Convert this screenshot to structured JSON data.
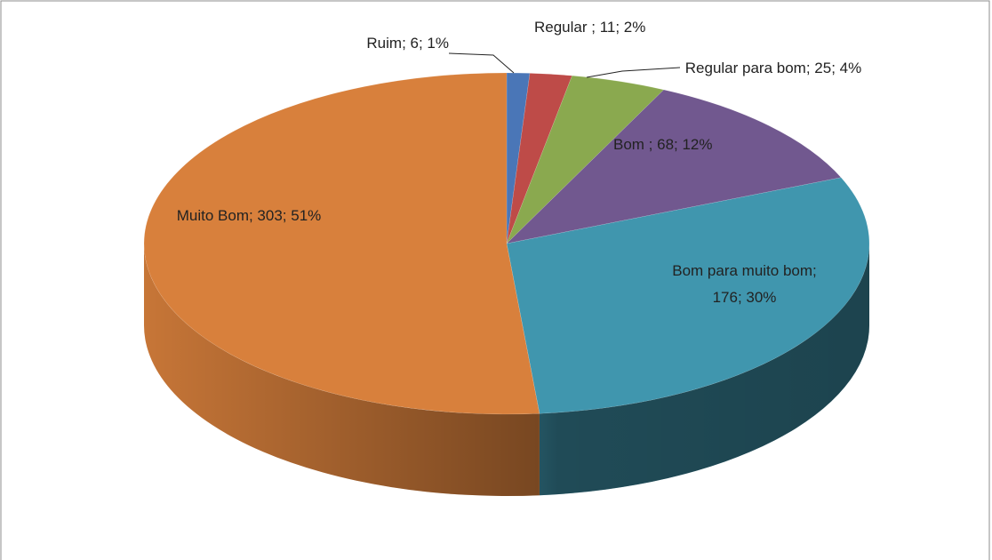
{
  "chart_data": {
    "type": "pie",
    "values": [
      6,
      11,
      25,
      68,
      176,
      303
    ],
    "value_labels": [
      "Ruim; 6; 1%",
      "Regular ; 11; 2%",
      "Regular para bom; 25; 4%",
      "Bom ; 68; 12%",
      "Bom para muito bom; 176; 30%",
      "Muito Bom; 303; 51%"
    ],
    "colors": [
      "#4a76b7",
      "#be4b48",
      "#8aa94f",
      "#71588f",
      "#4096ae",
      "#d8803c"
    ]
  }
}
